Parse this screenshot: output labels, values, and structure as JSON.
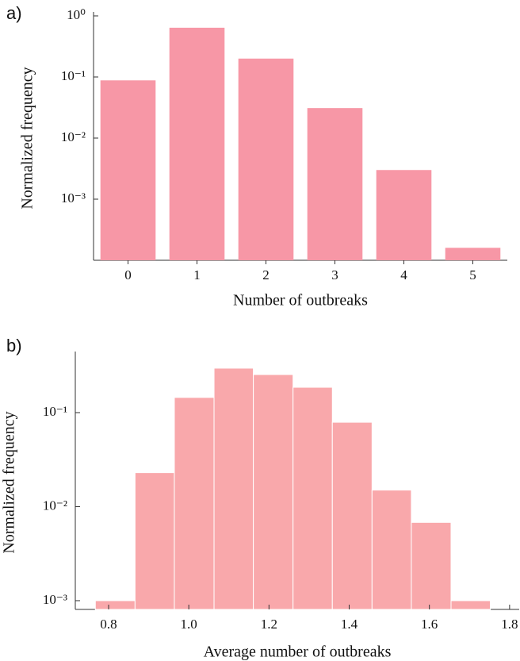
{
  "chart_data": [
    {
      "type": "bar",
      "panel_label": "a)",
      "xlabel": "Number of outbreaks",
      "ylabel": "Normalized frequency",
      "categories": [
        "0",
        "1",
        "2",
        "3",
        "4",
        "5"
      ],
      "values": [
        0.088,
        0.64,
        0.2,
        0.031,
        0.003,
        0.00016
      ],
      "color": "#f797a6",
      "log_y": true,
      "ylim": [
        0.0001,
        1
      ],
      "yticks": [
        {
          "value": 1,
          "label": "10⁰"
        },
        {
          "value": 0.1,
          "label": "10⁻¹"
        },
        {
          "value": 0.01,
          "label": "10⁻²"
        },
        {
          "value": 0.001,
          "label": "10⁻³"
        }
      ]
    },
    {
      "type": "histogram",
      "panel_label": "b)",
      "xlabel": "Average number of outbreaks",
      "ylabel": "Normalized frequency",
      "bins": [
        0.767,
        0.866,
        0.964,
        1.063,
        1.161,
        1.26,
        1.358,
        1.457,
        1.555,
        1.654,
        1.752
      ],
      "values": [
        0.001,
        0.023,
        0.145,
        0.297,
        0.254,
        0.186,
        0.079,
        0.015,
        0.0068,
        0.001
      ],
      "color": "#f9a8ab",
      "log_y": true,
      "xlim": [
        0.717,
        1.824
      ],
      "ylim": [
        0.000807,
        0.405
      ],
      "xticks": [
        0.8,
        {
          "value": 1,
          "label": "1.0"
        },
        1.2,
        1.4,
        1.6,
        1.8
      ],
      "yticks": [
        {
          "value": 0.1,
          "label": "10⁻¹"
        },
        {
          "value": 0.01,
          "label": "10⁻²"
        },
        {
          "value": 0.001,
          "label": "10⁻³"
        }
      ]
    }
  ]
}
